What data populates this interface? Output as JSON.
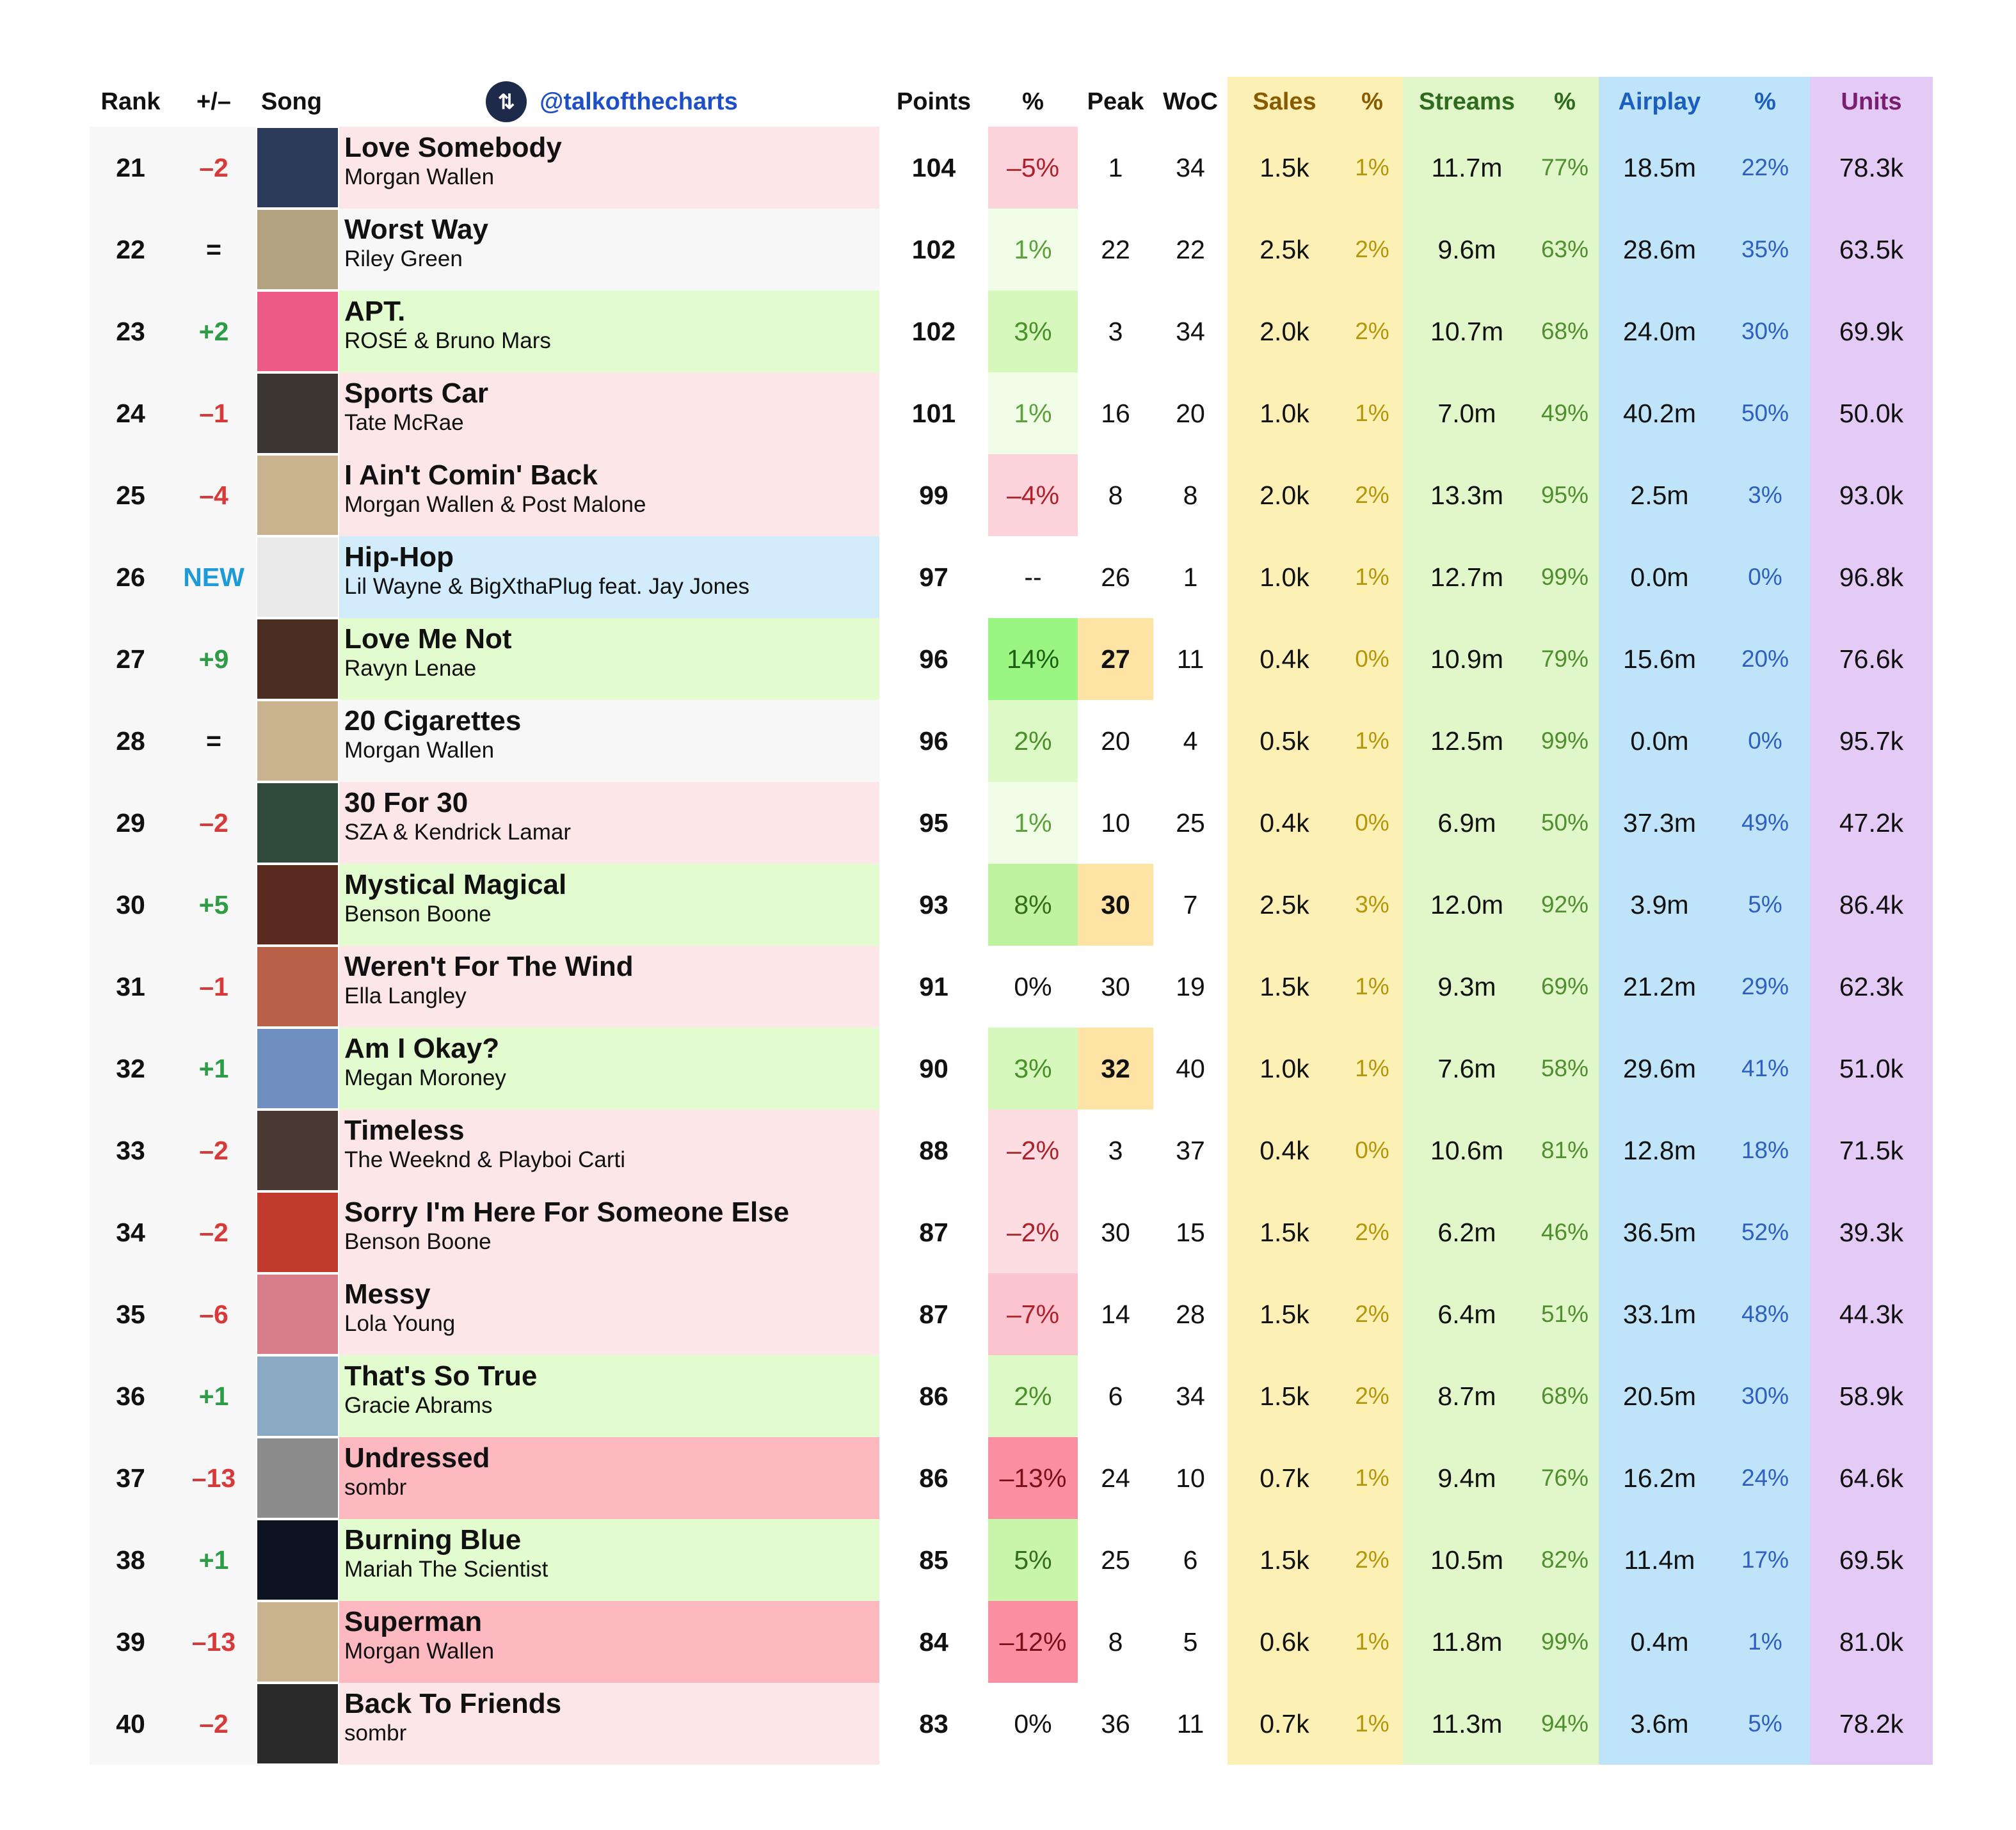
{
  "header": {
    "rank": "Rank",
    "move": "+/–",
    "song": "Song",
    "handle": "@talkofthecharts",
    "logo_icon": "up-down-arrows-icon",
    "points": "Points",
    "pct": "%",
    "peak": "Peak",
    "woc": "WoC",
    "sales": "Sales",
    "sales_pct": "%",
    "streams": "Streams",
    "streams_pct": "%",
    "airplay": "Airplay",
    "airplay_pct": "%",
    "units": "Units"
  },
  "colors": {
    "row_up": "#e2fbcf",
    "row_down": "#fde6e8",
    "row_down_strong": "#fdb8c0",
    "row_new": "#d2ecfb",
    "row_same": "#f7f7f7",
    "move_up": "#2e9b47",
    "move_down": "#d83a3a",
    "move_new": "#1e9ad6",
    "peak_highlight": "#fde3a4"
  },
  "rows": [
    {
      "rank": "21",
      "move": "–2",
      "title": "Love Somebody",
      "artist": "Morgan Wallen",
      "points": "104",
      "pct": "–5%",
      "peak": "1",
      "woc": "34",
      "sales": "1.5k",
      "sales_pct": "1%",
      "streams": "11.7m",
      "streams_pct": "77%",
      "airplay": "18.5m",
      "airplay_pct": "22%",
      "units": "78.3k",
      "status": "down",
      "pct_bg": "#fcd3da",
      "pct_color": "#b0202a",
      "peak_hl": false,
      "art": "#2c3b5a"
    },
    {
      "rank": "22",
      "move": "=",
      "title": "Worst Way",
      "artist": "Riley Green",
      "points": "102",
      "pct": "1%",
      "peak": "22",
      "woc": "22",
      "sales": "2.5k",
      "sales_pct": "2%",
      "streams": "9.6m",
      "streams_pct": "63%",
      "airplay": "28.6m",
      "airplay_pct": "35%",
      "units": "63.5k",
      "status": "same",
      "pct_bg": "#f1fde6",
      "pct_color": "#5aa13a",
      "peak_hl": false,
      "art": "#b3a27f"
    },
    {
      "rank": "23",
      "move": "+2",
      "title": "APT.",
      "artist": "ROSÉ & Bruno Mars",
      "points": "102",
      "pct": "3%",
      "peak": "3",
      "woc": "34",
      "sales": "2.0k",
      "sales_pct": "2%",
      "streams": "10.7m",
      "streams_pct": "68%",
      "airplay": "24.0m",
      "airplay_pct": "30%",
      "units": "69.9k",
      "status": "up",
      "pct_bg": "#d6f8bd",
      "pct_color": "#4a8f2a",
      "peak_hl": false,
      "art": "#ee5a86"
    },
    {
      "rank": "24",
      "move": "–1",
      "title": "Sports Car",
      "artist": "Tate McRae",
      "points": "101",
      "pct": "1%",
      "peak": "16",
      "woc": "20",
      "sales": "1.0k",
      "sales_pct": "1%",
      "streams": "7.0m",
      "streams_pct": "49%",
      "airplay": "40.2m",
      "airplay_pct": "50%",
      "units": "50.0k",
      "status": "down",
      "pct_bg": "#f1fde6",
      "pct_color": "#5aa13a",
      "peak_hl": false,
      "art": "#3b3632"
    },
    {
      "rank": "25",
      "move": "–4",
      "title": "I Ain't Comin' Back",
      "artist": "Morgan Wallen & Post Malone",
      "points": "99",
      "pct": "–4%",
      "peak": "8",
      "woc": "8",
      "sales": "2.0k",
      "sales_pct": "2%",
      "streams": "13.3m",
      "streams_pct": "95%",
      "airplay": "2.5m",
      "airplay_pct": "3%",
      "units": "93.0k",
      "status": "down",
      "pct_bg": "#fcd3da",
      "pct_color": "#b0202a",
      "peak_hl": false,
      "art": "#c9b38f"
    },
    {
      "rank": "26",
      "move": "NEW",
      "title": "Hip-Hop",
      "artist": "Lil Wayne & BigXthaPlug feat. Jay Jones",
      "points": "97",
      "pct": "--",
      "peak": "26",
      "woc": "1",
      "sales": "1.0k",
      "sales_pct": "1%",
      "streams": "12.7m",
      "streams_pct": "99%",
      "airplay": "0.0m",
      "airplay_pct": "0%",
      "units": "96.8k",
      "status": "new",
      "pct_bg": "transparent",
      "pct_color": "#111111",
      "peak_hl": false,
      "art": "#e9e9e9"
    },
    {
      "rank": "27",
      "move": "+9",
      "title": "Love Me Not",
      "artist": "Ravyn Lenae",
      "points": "96",
      "pct": "14%",
      "peak": "27",
      "woc": "11",
      "sales": "0.4k",
      "sales_pct": "0%",
      "streams": "10.9m",
      "streams_pct": "79%",
      "airplay": "15.6m",
      "airplay_pct": "20%",
      "units": "76.6k",
      "status": "up",
      "pct_bg": "#9bf583",
      "pct_color": "#1f5e12",
      "peak_hl": true,
      "art": "#4a2e22"
    },
    {
      "rank": "28",
      "move": "=",
      "title": "20 Cigarettes",
      "artist": "Morgan Wallen",
      "points": "96",
      "pct": "2%",
      "peak": "20",
      "woc": "4",
      "sales": "0.5k",
      "sales_pct": "1%",
      "streams": "12.5m",
      "streams_pct": "99%",
      "airplay": "0.0m",
      "airplay_pct": "0%",
      "units": "95.7k",
      "status": "same",
      "pct_bg": "#dcf9c6",
      "pct_color": "#4a8f2a",
      "peak_hl": false,
      "art": "#c9b38f"
    },
    {
      "rank": "29",
      "move": "–2",
      "title": "30 For 30",
      "artist": "SZA & Kendrick Lamar",
      "points": "95",
      "pct": "1%",
      "peak": "10",
      "woc": "25",
      "sales": "0.4k",
      "sales_pct": "0%",
      "streams": "6.9m",
      "streams_pct": "50%",
      "airplay": "37.3m",
      "airplay_pct": "49%",
      "units": "47.2k",
      "status": "down",
      "pct_bg": "#f1fde6",
      "pct_color": "#5aa13a",
      "peak_hl": false,
      "art": "#2f4a3a"
    },
    {
      "rank": "30",
      "move": "+5",
      "title": "Mystical Magical",
      "artist": "Benson Boone",
      "points": "93",
      "pct": "8%",
      "peak": "30",
      "woc": "7",
      "sales": "2.5k",
      "sales_pct": "3%",
      "streams": "12.0m",
      "streams_pct": "92%",
      "airplay": "3.9m",
      "airplay_pct": "5%",
      "units": "86.4k",
      "status": "up",
      "pct_bg": "#c0f3a0",
      "pct_color": "#336e1c",
      "peak_hl": true,
      "art": "#5a2a1e"
    },
    {
      "rank": "31",
      "move": "–1",
      "title": "Weren't For The Wind",
      "artist": "Ella Langley",
      "points": "91",
      "pct": "0%",
      "peak": "30",
      "woc": "19",
      "sales": "1.5k",
      "sales_pct": "1%",
      "streams": "9.3m",
      "streams_pct": "69%",
      "airplay": "21.2m",
      "airplay_pct": "29%",
      "units": "62.3k",
      "status": "down",
      "pct_bg": "transparent",
      "pct_color": "#111111",
      "peak_hl": false,
      "art": "#b86048"
    },
    {
      "rank": "32",
      "move": "+1",
      "title": "Am I Okay?",
      "artist": "Megan Moroney",
      "points": "90",
      "pct": "3%",
      "peak": "32",
      "woc": "40",
      "sales": "1.0k",
      "sales_pct": "1%",
      "streams": "7.6m",
      "streams_pct": "58%",
      "airplay": "29.6m",
      "airplay_pct": "41%",
      "units": "51.0k",
      "status": "up",
      "pct_bg": "#d6f8bd",
      "pct_color": "#4a8f2a",
      "peak_hl": true,
      "art": "#6e8fbf"
    },
    {
      "rank": "33",
      "move": "–2",
      "title": "Timeless",
      "artist": "The Weeknd & Playboi Carti",
      "points": "88",
      "pct": "–2%",
      "peak": "3",
      "woc": "37",
      "sales": "0.4k",
      "sales_pct": "0%",
      "streams": "10.6m",
      "streams_pct": "81%",
      "airplay": "12.8m",
      "airplay_pct": "18%",
      "units": "71.5k",
      "status": "down",
      "pct_bg": "#fddde2",
      "pct_color": "#b0202a",
      "peak_hl": false,
      "art": "#4a3a33"
    },
    {
      "rank": "34",
      "move": "–2",
      "title": "Sorry I'm Here For Someone Else",
      "artist": "Benson Boone",
      "points": "87",
      "pct": "–2%",
      "peak": "30",
      "woc": "15",
      "sales": "1.5k",
      "sales_pct": "2%",
      "streams": "6.2m",
      "streams_pct": "46%",
      "airplay": "36.5m",
      "airplay_pct": "52%",
      "units": "39.3k",
      "status": "down",
      "pct_bg": "#fddde2",
      "pct_color": "#b0202a",
      "peak_hl": false,
      "art": "#c23a2e"
    },
    {
      "rank": "35",
      "move": "–6",
      "title": "Messy",
      "artist": "Lola Young",
      "points": "87",
      "pct": "–7%",
      "peak": "14",
      "woc": "28",
      "sales": "1.5k",
      "sales_pct": "2%",
      "streams": "6.4m",
      "streams_pct": "51%",
      "airplay": "33.1m",
      "airplay_pct": "48%",
      "units": "44.3k",
      "status": "down",
      "pct_bg": "#fcc4ce",
      "pct_color": "#b0202a",
      "peak_hl": false,
      "art": "#d87e8a"
    },
    {
      "rank": "36",
      "move": "+1",
      "title": "That's So True",
      "artist": "Gracie Abrams",
      "points": "86",
      "pct": "2%",
      "peak": "6",
      "woc": "34",
      "sales": "1.5k",
      "sales_pct": "2%",
      "streams": "8.7m",
      "streams_pct": "68%",
      "airplay": "20.5m",
      "airplay_pct": "30%",
      "units": "58.9k",
      "status": "up",
      "pct_bg": "#dcf9c6",
      "pct_color": "#4a8f2a",
      "peak_hl": false,
      "art": "#8aa9c2"
    },
    {
      "rank": "37",
      "move": "–13",
      "title": "Undressed",
      "artist": "sombr",
      "points": "86",
      "pct": "–13%",
      "peak": "24",
      "woc": "10",
      "sales": "0.7k",
      "sales_pct": "1%",
      "streams": "9.4m",
      "streams_pct": "76%",
      "airplay": "16.2m",
      "airplay_pct": "24%",
      "units": "64.6k",
      "status": "down_strong",
      "pct_bg": "#f98fa0",
      "pct_color": "#7a0f1a",
      "peak_hl": false,
      "art": "#8c8c8c"
    },
    {
      "rank": "38",
      "move": "+1",
      "title": "Burning Blue",
      "artist": "Mariah The Scientist",
      "points": "85",
      "pct": "5%",
      "peak": "25",
      "woc": "6",
      "sales": "1.5k",
      "sales_pct": "2%",
      "streams": "10.5m",
      "streams_pct": "82%",
      "airplay": "11.4m",
      "airplay_pct": "17%",
      "units": "69.5k",
      "status": "up",
      "pct_bg": "#c8f5aa",
      "pct_color": "#336e1c",
      "peak_hl": false,
      "art": "#0c1422"
    },
    {
      "rank": "39",
      "move": "–13",
      "title": "Superman",
      "artist": "Morgan Wallen",
      "points": "84",
      "pct": "–12%",
      "peak": "8",
      "woc": "5",
      "sales": "0.6k",
      "sales_pct": "1%",
      "streams": "11.8m",
      "streams_pct": "99%",
      "airplay": "0.4m",
      "airplay_pct": "1%",
      "units": "81.0k",
      "status": "down_strong",
      "pct_bg": "#f98fa0",
      "pct_color": "#7a0f1a",
      "peak_hl": false,
      "art": "#c9b38f"
    },
    {
      "rank": "40",
      "move": "–2",
      "title": "Back To Friends",
      "artist": "sombr",
      "points": "83",
      "pct": "0%",
      "peak": "36",
      "woc": "11",
      "sales": "0.7k",
      "sales_pct": "1%",
      "streams": "11.3m",
      "streams_pct": "94%",
      "airplay": "3.6m",
      "airplay_pct": "5%",
      "units": "78.2k",
      "status": "down",
      "pct_bg": "transparent",
      "pct_color": "#111111",
      "peak_hl": false,
      "art": "#2a2a2a"
    }
  ]
}
